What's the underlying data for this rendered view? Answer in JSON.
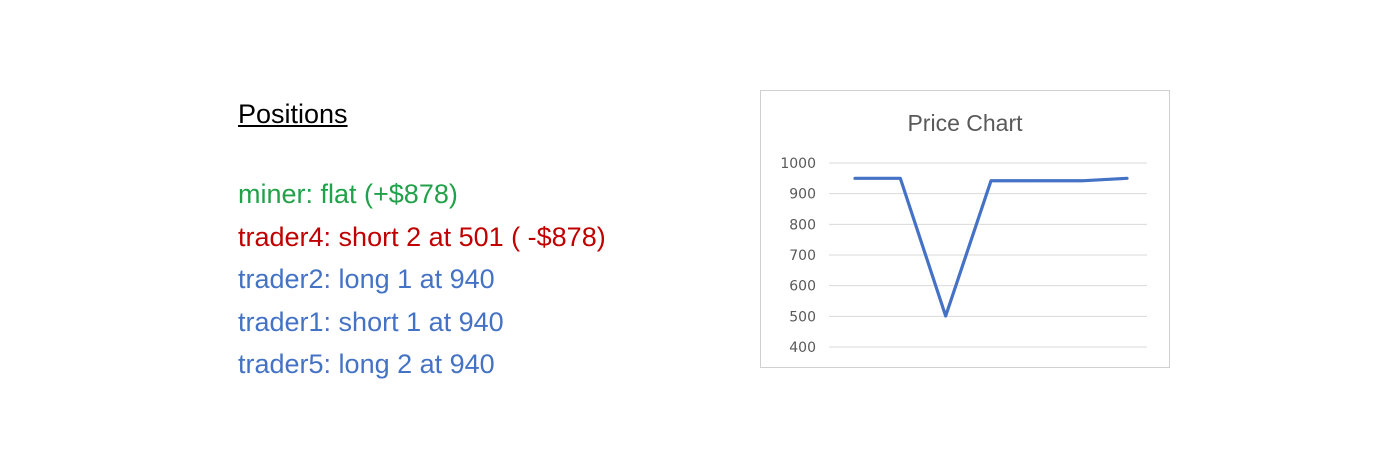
{
  "positions": {
    "title": "Positions",
    "lines": [
      {
        "text": "miner: flat (+$878)",
        "color": "#21a24a"
      },
      {
        "text": "trader4: short 2 at 501 ( -$878)",
        "color": "#c00000"
      },
      {
        "text": "trader2: long 1 at 940",
        "color": "#4472c4"
      },
      {
        "text": "trader1: short 1 at 940",
        "color": "#4472c4"
      },
      {
        "text": "trader5: long 2 at 940",
        "color": "#4472c4"
      }
    ]
  },
  "chart_data": {
    "type": "line",
    "title": "Price Chart",
    "xlabel": "",
    "ylabel": "",
    "ylim": [
      400,
      1000
    ],
    "yticks": [
      "1000",
      "900",
      "800",
      "700",
      "600",
      "500",
      "400"
    ],
    "x": [
      1,
      2,
      3,
      4,
      5,
      6,
      7
    ],
    "series": [
      {
        "values": [
          950,
          950,
          501,
          942,
          942,
          942,
          950
        ],
        "color": "#4472c4"
      }
    ],
    "grid": true,
    "legend": "none"
  }
}
